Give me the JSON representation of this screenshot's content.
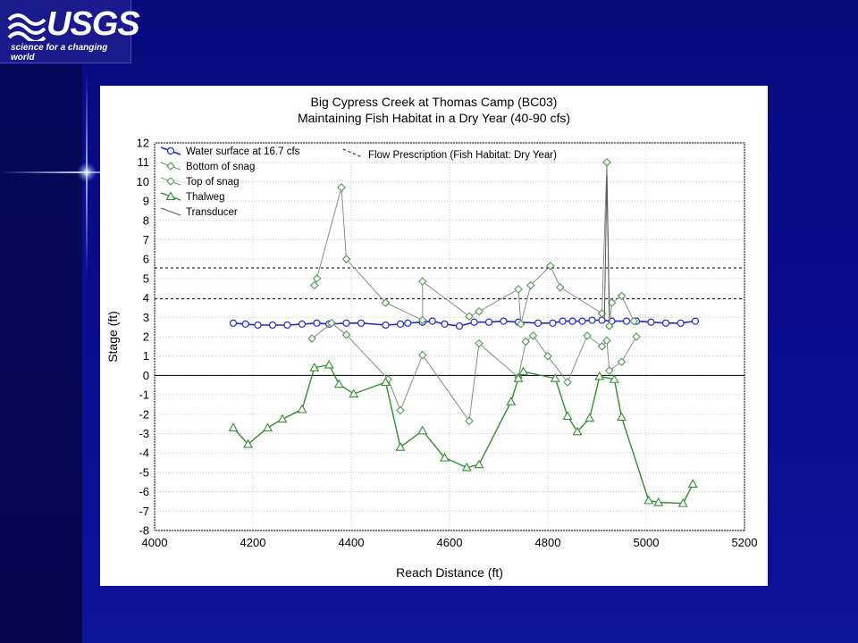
{
  "logo": {
    "text": "USGS",
    "tagline": "science for a changing world",
    "icon": "usgs-wave-icon"
  },
  "colors": {
    "background": "#0b0b8c",
    "water_surface": "#1f2bd0",
    "snag": "#4e9a4e",
    "thalweg": "#2f8f2f",
    "line_gray": "#8a8a8a"
  },
  "chart_data": {
    "type": "line",
    "title": "Big Cypress Creek at Thomas Camp (BC03)",
    "subtitle": "Maintaining Fish Habitat in a Dry Year (40-90 cfs)",
    "xlabel": "Reach Distance (ft)",
    "ylabel": "Stage (ft)",
    "xlim": [
      4000,
      5200
    ],
    "ylim": [
      -8,
      12
    ],
    "x_ticks": [
      4000,
      4200,
      4400,
      4600,
      4800,
      5000,
      5200
    ],
    "y_ticks": [
      -8,
      -7,
      -6,
      -5,
      -4,
      -3,
      -2,
      -1,
      0,
      1,
      2,
      3,
      4,
      5,
      6,
      7,
      8,
      9,
      10,
      11,
      12
    ],
    "grid": true,
    "legend_placement": "top-left",
    "flow_prescription_label": "Flow Prescription (Fish Habitat: Dry Year)",
    "flow_prescription_levels": [
      3.95,
      5.55
    ],
    "zero_line": 0,
    "series": [
      {
        "name": "Water surface at 16.7 cfs",
        "marker": "circle",
        "x": [
          4160,
          4185,
          4210,
          4240,
          4270,
          4300,
          4330,
          4355,
          4390,
          4420,
          4470,
          4500,
          4515,
          4545,
          4565,
          4590,
          4620,
          4650,
          4680,
          4710,
          4740,
          4780,
          4810,
          4830,
          4850,
          4870,
          4890,
          4910,
          4930,
          4960,
          4980,
          5010,
          5040,
          5070,
          5100
        ],
        "y": [
          2.7,
          2.65,
          2.6,
          2.6,
          2.6,
          2.65,
          2.7,
          2.65,
          2.7,
          2.7,
          2.6,
          2.65,
          2.7,
          2.75,
          2.8,
          2.65,
          2.55,
          2.75,
          2.75,
          2.8,
          2.75,
          2.7,
          2.7,
          2.8,
          2.8,
          2.8,
          2.85,
          2.85,
          2.8,
          2.8,
          2.8,
          2.75,
          2.7,
          2.7,
          2.8
        ]
      },
      {
        "name": "Bottom of snag",
        "marker": "diamond",
        "x": [
          4320,
          4360,
          4390,
          4475,
          4500,
          4545,
          4640,
          4660,
          4740,
          4755,
          4770,
          4800,
          4840,
          4880,
          4910,
          4920,
          4925,
          4950,
          4980
        ],
        "y": [
          1.9,
          2.7,
          2.1,
          -0.2,
          -1.8,
          1.05,
          -2.35,
          1.65,
          -0.1,
          1.75,
          2.05,
          1.0,
          -0.35,
          2.05,
          1.5,
          1.8,
          0.25,
          0.7,
          2.0
        ]
      },
      {
        "name": "Top of snag",
        "marker": "diamond",
        "x": [
          4325,
          4330,
          4380,
          4390,
          4470,
          4545,
          4545,
          4640,
          4660,
          4740,
          4745,
          4765,
          4805,
          4825,
          4910,
          4920,
          4925,
          4930,
          4950,
          4975
        ],
        "y": [
          4.65,
          5.0,
          9.7,
          6.0,
          3.75,
          2.85,
          4.85,
          3.05,
          3.3,
          4.45,
          2.65,
          4.65,
          5.65,
          4.55,
          3.2,
          11.0,
          2.55,
          3.75,
          4.1,
          2.8
        ]
      },
      {
        "name": "Thalweg",
        "marker": "triangle",
        "x": [
          4160,
          4190,
          4230,
          4260,
          4300,
          4325,
          4355,
          4375,
          4405,
          4470,
          4500,
          4545,
          4590,
          4635,
          4660,
          4725,
          4740,
          4750,
          4815,
          4840,
          4860,
          4885,
          4905,
          4935,
          4950,
          5005,
          5025,
          5075,
          5095
        ],
        "y": [
          -2.7,
          -3.55,
          -2.7,
          -2.25,
          -1.75,
          0.4,
          0.55,
          -0.45,
          -0.95,
          -0.35,
          -3.7,
          -2.85,
          -4.25,
          -4.75,
          -4.6,
          -1.35,
          -0.15,
          0.2,
          -0.15,
          -2.1,
          -2.9,
          -2.2,
          -0.05,
          -0.2,
          -2.15,
          -6.45,
          -6.55,
          -6.6,
          -5.6
        ]
      },
      {
        "name": "Transducer",
        "marker": "line",
        "x": [
          4915,
          4920,
          4925
        ],
        "y": [
          3.0,
          10.3,
          3.1
        ]
      }
    ]
  }
}
